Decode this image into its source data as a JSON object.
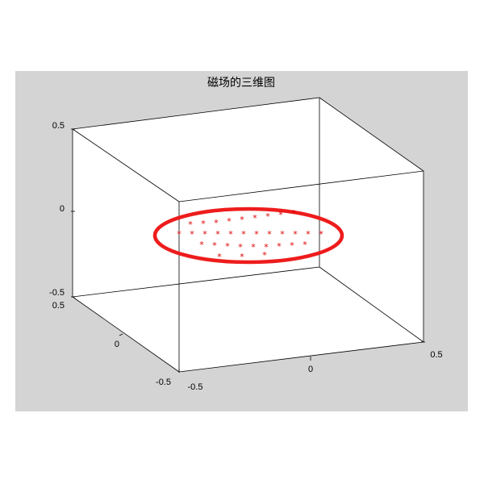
{
  "window": {
    "background": "#d4d4d4",
    "plot_background": "#ffffff"
  },
  "chart_data": {
    "type": "3d-line",
    "title": "磁场的三维图",
    "xlim": [
      -0.5,
      0.5
    ],
    "ylim": [
      -0.5,
      0.5
    ],
    "zlim": [
      -0.5,
      0.5
    ],
    "x_ticks": [
      "-0.5",
      "0",
      "0.5"
    ],
    "y_ticks": [
      "-0.5",
      "0",
      "0.5"
    ],
    "z_ticks": [
      "-0.5",
      "0",
      "0.5"
    ],
    "grid": false,
    "box": true,
    "series": [
      {
        "kind": "ring",
        "color": "#ee1c1c",
        "radius": 0.3,
        "z": 0
      },
      {
        "kind": "field-lines",
        "color": "#0000cc"
      },
      {
        "kind": "markers",
        "marker": "*",
        "color": "#dd0000"
      }
    ]
  }
}
